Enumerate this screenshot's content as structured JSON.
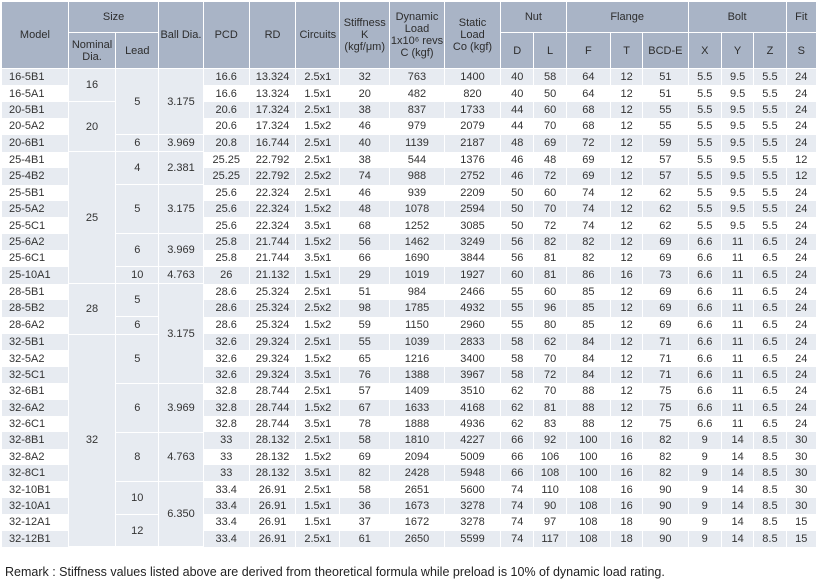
{
  "headers": {
    "model": "Model",
    "size": "Size",
    "nominal_dia": "Nominal Dia.",
    "lead": "Lead",
    "ball_dia": "Ball Dia.",
    "pcd": "PCD",
    "rd": "RD",
    "circuits": "Circuits",
    "stiffness_1": "Stiffness",
    "stiffness_2": "K",
    "stiffness_3": "(kgf/μm)",
    "dynamic_1": "Dynamic",
    "dynamic_2": "Load",
    "dynamic_3": "1x10⁶ revs",
    "dynamic_4": "C (kgf)",
    "static_1": "Static",
    "static_2": "Load",
    "static_3": "Co (kgf)",
    "nut": "Nut",
    "flange": "Flange",
    "bolt": "Bolt",
    "fit": "Fit",
    "d": "D",
    "l": "L",
    "f": "F",
    "t": "T",
    "bcd": "BCD-E",
    "x": "X",
    "y": "Y",
    "z": "Z",
    "s": "S"
  },
  "groups": {
    "n16": "16",
    "n20": "20",
    "n25": "25",
    "n28": "28",
    "n32": "32",
    "l5a": "5",
    "l6a": "6",
    "l4": "4",
    "l5b": "5",
    "l6b": "6",
    "l10a": "10",
    "l5c": "5",
    "l6c": "6",
    "l5d": "5",
    "l6d": "6",
    "l8": "8",
    "l10b": "10",
    "l12": "12",
    "b3175a": "3.175",
    "b3969a": "3.969",
    "b2381": "2.381",
    "b3175b": "3.175",
    "b3969b": "3.969",
    "b4763a": "4.763",
    "b3175c": "3.175",
    "b3969c": "3.969",
    "b4763b": "4.763",
    "b6350": "6.350"
  },
  "rows": [
    [
      "16-5B1",
      "16.6",
      "13.324",
      "2.5x1",
      "32",
      "763",
      "1400",
      "40",
      "58",
      "64",
      "12",
      "51",
      "5.5",
      "9.5",
      "5.5",
      "24"
    ],
    [
      "16-5A1",
      "16.6",
      "13.324",
      "1.5x1",
      "20",
      "482",
      "820",
      "40",
      "50",
      "64",
      "12",
      "51",
      "5.5",
      "9.5",
      "5.5",
      "24"
    ],
    [
      "20-5B1",
      "20.6",
      "17.324",
      "2.5x1",
      "38",
      "837",
      "1733",
      "44",
      "60",
      "68",
      "12",
      "55",
      "5.5",
      "9.5",
      "5.5",
      "24"
    ],
    [
      "20-5A2",
      "20.6",
      "17.324",
      "1.5x2",
      "46",
      "979",
      "2079",
      "44",
      "70",
      "68",
      "12",
      "55",
      "5.5",
      "9.5",
      "5.5",
      "24"
    ],
    [
      "20-6B1",
      "20.8",
      "16.744",
      "2.5x1",
      "40",
      "1139",
      "2187",
      "48",
      "69",
      "72",
      "12",
      "59",
      "5.5",
      "9.5",
      "5.5",
      "24"
    ],
    [
      "25-4B1",
      "25.25",
      "22.792",
      "2.5x1",
      "38",
      "544",
      "1376",
      "46",
      "48",
      "69",
      "12",
      "57",
      "5.5",
      "9.5",
      "5.5",
      "12"
    ],
    [
      "25-4B2",
      "25.25",
      "22.792",
      "2.5x2",
      "74",
      "988",
      "2752",
      "46",
      "72",
      "69",
      "12",
      "57",
      "5.5",
      "9.5",
      "5.5",
      "12"
    ],
    [
      "25-5B1",
      "25.6",
      "22.324",
      "2.5x1",
      "46",
      "939",
      "2209",
      "50",
      "60",
      "74",
      "12",
      "62",
      "5.5",
      "9.5",
      "5.5",
      "24"
    ],
    [
      "25-5A2",
      "25.6",
      "22.324",
      "1.5x2",
      "48",
      "1078",
      "2594",
      "50",
      "70",
      "74",
      "12",
      "62",
      "5.5",
      "9.5",
      "5.5",
      "24"
    ],
    [
      "25-5C1",
      "25.6",
      "22.324",
      "3.5x1",
      "68",
      "1252",
      "3085",
      "50",
      "72",
      "74",
      "12",
      "62",
      "5.5",
      "9.5",
      "5.5",
      "24"
    ],
    [
      "25-6A2",
      "25.8",
      "21.744",
      "1.5x2",
      "56",
      "1462",
      "3249",
      "56",
      "82",
      "82",
      "12",
      "69",
      "6.6",
      "11",
      "6.5",
      "24"
    ],
    [
      "25-6C1",
      "25.8",
      "21.744",
      "3.5x1",
      "66",
      "1690",
      "3844",
      "56",
      "81",
      "82",
      "12",
      "69",
      "6.6",
      "11",
      "6.5",
      "24"
    ],
    [
      "25-10A1",
      "26",
      "21.132",
      "1.5x1",
      "29",
      "1019",
      "1927",
      "60",
      "81",
      "86",
      "16",
      "73",
      "6.6",
      "11",
      "6.5",
      "24"
    ],
    [
      "28-5B1",
      "28.6",
      "25.324",
      "2.5x1",
      "51",
      "984",
      "2466",
      "55",
      "60",
      "85",
      "12",
      "69",
      "6.6",
      "11",
      "6.5",
      "24"
    ],
    [
      "28-5B2",
      "28.6",
      "25.324",
      "2.5x2",
      "98",
      "1785",
      "4932",
      "55",
      "96",
      "85",
      "12",
      "69",
      "6.6",
      "11",
      "6.5",
      "24"
    ],
    [
      "28-6A2",
      "28.6",
      "25.324",
      "1.5x2",
      "59",
      "1150",
      "2960",
      "55",
      "80",
      "85",
      "12",
      "69",
      "6.6",
      "11",
      "6.5",
      "24"
    ],
    [
      "32-5B1",
      "32.6",
      "29.324",
      "2.5x1",
      "55",
      "1039",
      "2833",
      "58",
      "62",
      "84",
      "12",
      "71",
      "6.6",
      "11",
      "6.5",
      "24"
    ],
    [
      "32-5A2",
      "32.6",
      "29.324",
      "1.5x2",
      "65",
      "1216",
      "3400",
      "58",
      "70",
      "84",
      "12",
      "71",
      "6.6",
      "11",
      "6.5",
      "24"
    ],
    [
      "32-5C1",
      "32.6",
      "29.324",
      "3.5x1",
      "76",
      "1388",
      "3967",
      "58",
      "72",
      "84",
      "12",
      "71",
      "6.6",
      "11",
      "6.5",
      "24"
    ],
    [
      "32-6B1",
      "32.8",
      "28.744",
      "2.5x1",
      "57",
      "1409",
      "3510",
      "62",
      "70",
      "88",
      "12",
      "75",
      "6.6",
      "11",
      "6.5",
      "24"
    ],
    [
      "32-6A2",
      "32.8",
      "28.744",
      "1.5x2",
      "67",
      "1633",
      "4168",
      "62",
      "81",
      "88",
      "12",
      "75",
      "6.6",
      "11",
      "6.5",
      "24"
    ],
    [
      "32-6C1",
      "32.8",
      "28.744",
      "3.5x1",
      "78",
      "1888",
      "4936",
      "62",
      "83",
      "88",
      "12",
      "75",
      "6.6",
      "11",
      "6.5",
      "24"
    ],
    [
      "32-8B1",
      "33",
      "28.132",
      "2.5x1",
      "58",
      "1810",
      "4227",
      "66",
      "92",
      "100",
      "16",
      "82",
      "9",
      "14",
      "8.5",
      "30"
    ],
    [
      "32-8A2",
      "33",
      "28.132",
      "1.5x2",
      "69",
      "2094",
      "5009",
      "66",
      "106",
      "100",
      "16",
      "82",
      "9",
      "14",
      "8.5",
      "30"
    ],
    [
      "32-8C1",
      "33",
      "28.132",
      "3.5x1",
      "82",
      "2428",
      "5948",
      "66",
      "108",
      "100",
      "16",
      "82",
      "9",
      "14",
      "8.5",
      "30"
    ],
    [
      "32-10B1",
      "33.4",
      "26.91",
      "2.5x1",
      "58",
      "2651",
      "5600",
      "74",
      "110",
      "108",
      "16",
      "90",
      "9",
      "14",
      "8.5",
      "30"
    ],
    [
      "32-10A1",
      "33.4",
      "26.91",
      "1.5x1",
      "36",
      "1673",
      "3278",
      "74",
      "90",
      "108",
      "16",
      "90",
      "9",
      "14",
      "8.5",
      "30"
    ],
    [
      "32-12A1",
      "33.4",
      "26.91",
      "1.5x1",
      "37",
      "1672",
      "3278",
      "74",
      "97",
      "108",
      "18",
      "90",
      "9",
      "14",
      "8.5",
      "15"
    ],
    [
      "32-12B1",
      "33.4",
      "26.91",
      "2.5x1",
      "61",
      "2650",
      "5599",
      "74",
      "117",
      "108",
      "18",
      "90",
      "9",
      "14",
      "8.5",
      "15"
    ]
  ],
  "remark": "Remark : Stiffness values listed above are derived from theoretical formula while preload is 10% of dynamic load rating."
}
